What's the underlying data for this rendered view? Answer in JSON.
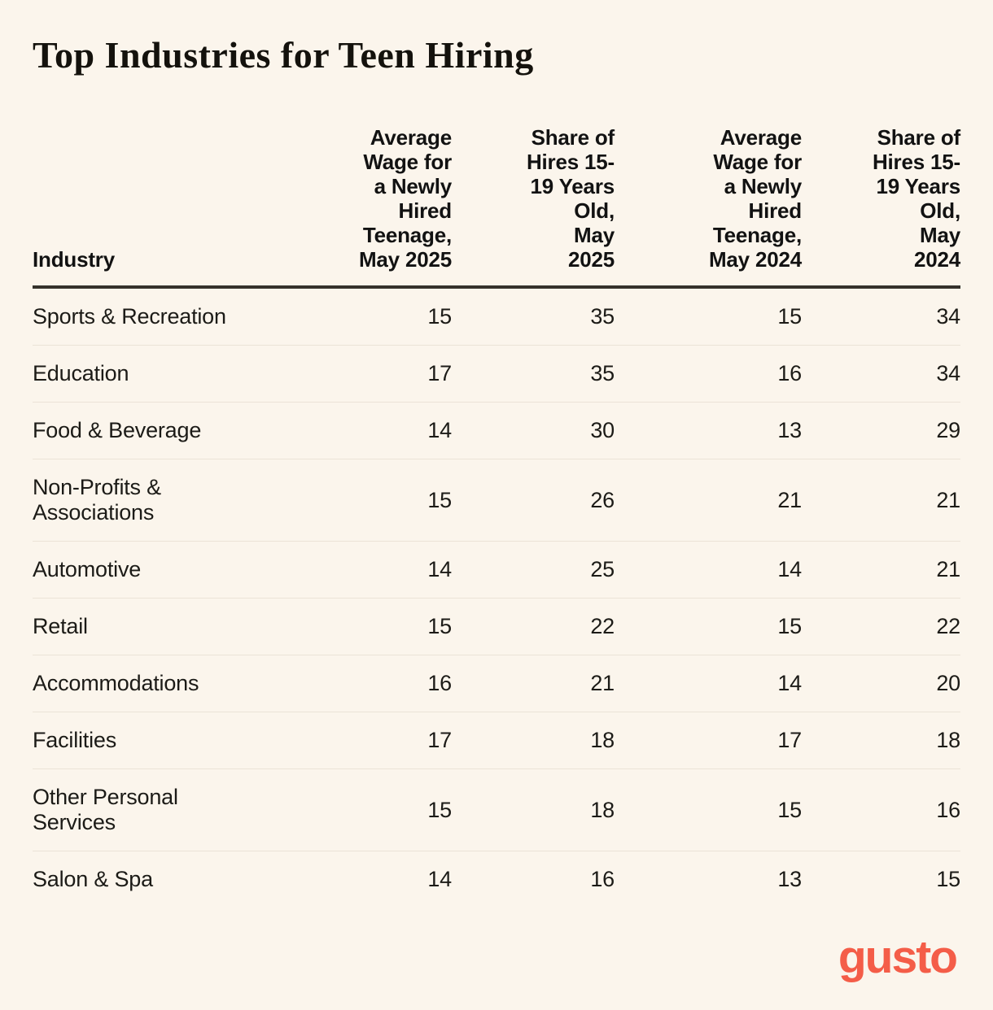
{
  "page": {
    "background_color": "#FBF5EC",
    "text_color": "#1C1B17",
    "accent_color": "#F45D48",
    "rule_color": "#35322C",
    "divider_color": "#EBE3D7"
  },
  "title": "Top Industries for Teen Hiring",
  "table": {
    "columns": [
      {
        "label": "Industry",
        "align": "left"
      },
      {
        "label": "Average\nWage for\na Newly\nHired\nTeenage,\nMay 2025",
        "align": "right"
      },
      {
        "label": "Share of\nHires 15-\n19 Years\nOld,\nMay\n2025",
        "align": "right"
      },
      {
        "label": "Average\nWage for\na Newly\nHired\nTeenage,\nMay 2024",
        "align": "right"
      },
      {
        "label": "Share of\nHires 15-\n19 Years\nOld,\nMay\n2024",
        "align": "right"
      }
    ],
    "rows": [
      {
        "industry": "Sports & Recreation",
        "values": [
          "15",
          "35",
          "15",
          "34"
        ]
      },
      {
        "industry": "Education",
        "values": [
          "17",
          "35",
          "16",
          "34"
        ]
      },
      {
        "industry": "Food & Beverage",
        "values": [
          "14",
          "30",
          "13",
          "29"
        ]
      },
      {
        "industry": "Non-Profits &\nAssociations",
        "values": [
          "15",
          "26",
          "21",
          "21"
        ]
      },
      {
        "industry": "Automotive",
        "values": [
          "14",
          "25",
          "14",
          "21"
        ]
      },
      {
        "industry": "Retail",
        "values": [
          "15",
          "22",
          "15",
          "22"
        ]
      },
      {
        "industry": "Accommodations",
        "values": [
          "16",
          "21",
          "14",
          "20"
        ]
      },
      {
        "industry": "Facilities",
        "values": [
          "17",
          "18",
          "17",
          "18"
        ]
      },
      {
        "industry": "Other Personal\nServices",
        "values": [
          "15",
          "18",
          "15",
          "16"
        ]
      },
      {
        "industry": "Salon & Spa",
        "values": [
          "14",
          "16",
          "13",
          "15"
        ]
      }
    ]
  },
  "footer": {
    "logo_text": "gusto",
    "logo_color": "#F45D48"
  },
  "chart_data": {
    "type": "table",
    "title": "Top Industries for Teen Hiring",
    "categories": [
      "Sports & Recreation",
      "Education",
      "Food & Beverage",
      "Non-Profits & Associations",
      "Automotive",
      "Retail",
      "Accommodations",
      "Facilities",
      "Other Personal Services",
      "Salon & Spa"
    ],
    "series": [
      {
        "name": "Average Wage for a Newly Hired Teenage, May 2025",
        "values": [
          15,
          17,
          14,
          15,
          14,
          15,
          16,
          17,
          15,
          14
        ]
      },
      {
        "name": "Share of Hires 15-19 Years Old, May 2025",
        "values": [
          35,
          35,
          30,
          26,
          25,
          22,
          21,
          18,
          18,
          16
        ]
      },
      {
        "name": "Average Wage for a Newly Hired Teenage, May 2024",
        "values": [
          15,
          16,
          13,
          21,
          14,
          15,
          14,
          17,
          15,
          13
        ]
      },
      {
        "name": "Share of Hires 15-19 Years Old, May 2024",
        "values": [
          34,
          34,
          29,
          21,
          21,
          22,
          20,
          18,
          16,
          15
        ]
      }
    ]
  }
}
